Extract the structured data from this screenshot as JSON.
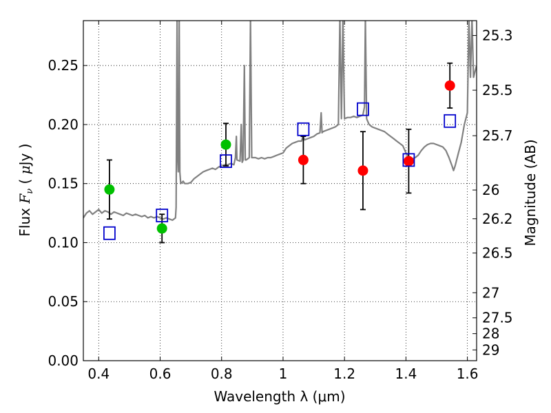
{
  "chart_data": {
    "type": "scatter",
    "xlabel": "Wavelength  λ (μm)",
    "ylabel_parts": [
      "Flux  ",
      "F",
      "ν",
      "  ( ",
      "μ",
      "Jy )"
    ],
    "right_ylabel": "Magnitude (AB)",
    "xlim": [
      0.35,
      1.63
    ],
    "ylim": [
      0.0,
      0.288
    ],
    "grid": true,
    "x_ticks": [
      0.4,
      0.6,
      0.8,
      1.0,
      1.2,
      1.4,
      1.6
    ],
    "x_tick_labels": [
      "0.4",
      "0.6",
      "0.8",
      "1",
      "1.2",
      "1.4",
      "1.6"
    ],
    "y_ticks": [
      0.0,
      0.05,
      0.1,
      0.15,
      0.2,
      0.25
    ],
    "y_tick_labels": [
      "0.00",
      "0.05",
      "0.10",
      "0.15",
      "0.20",
      "0.25"
    ],
    "mag_ticks": [
      25.3,
      25.5,
      25.7,
      26,
      26.2,
      26.5,
      27,
      27.5,
      28,
      29
    ],
    "mag_tick_labels": [
      "25.3",
      "25.5",
      "25.7",
      "26",
      "26.2",
      "26.5",
      "27",
      "27.5",
      "28",
      "29"
    ],
    "colors": {
      "model_line": "#808080",
      "green_points": "#00c000",
      "red_points": "#ff0000",
      "model_boxes": "#0000cc",
      "error_bars": "#000000"
    },
    "series": [
      {
        "marker": "circle",
        "color": "#00c000",
        "points": [
          {
            "x": 0.435,
            "y": 0.145,
            "yerr": 0.025
          },
          {
            "x": 0.606,
            "y": 0.112,
            "yerr": 0.012
          },
          {
            "x": 0.814,
            "y": 0.183,
            "yerr": 0.018
          }
        ]
      },
      {
        "marker": "circle",
        "color": "#ff0000",
        "points": [
          {
            "x": 1.066,
            "y": 0.17,
            "yerr": 0.02
          },
          {
            "x": 1.26,
            "y": 0.161,
            "yerr": 0.033
          },
          {
            "x": 1.409,
            "y": 0.169,
            "yerr": 0.027
          },
          {
            "x": 1.543,
            "y": 0.233,
            "yerr": 0.019
          }
        ]
      },
      {
        "marker": "square",
        "color": "#0000cc",
        "points": [
          {
            "x": 0.435,
            "y": 0.108
          },
          {
            "x": 0.606,
            "y": 0.123
          },
          {
            "x": 0.814,
            "y": 0.169
          },
          {
            "x": 1.066,
            "y": 0.196
          },
          {
            "x": 1.26,
            "y": 0.213
          },
          {
            "x": 1.409,
            "y": 0.17
          },
          {
            "x": 1.543,
            "y": 0.203
          }
        ]
      }
    ],
    "model_spectrum": [
      [
        0.35,
        0.121
      ],
      [
        0.36,
        0.125
      ],
      [
        0.37,
        0.127
      ],
      [
        0.38,
        0.124
      ],
      [
        0.39,
        0.126
      ],
      [
        0.4,
        0.128
      ],
      [
        0.41,
        0.125
      ],
      [
        0.42,
        0.127
      ],
      [
        0.43,
        0.126
      ],
      [
        0.44,
        0.124
      ],
      [
        0.45,
        0.126
      ],
      [
        0.46,
        0.125
      ],
      [
        0.47,
        0.124
      ],
      [
        0.48,
        0.123
      ],
      [
        0.49,
        0.125
      ],
      [
        0.5,
        0.124
      ],
      [
        0.51,
        0.123
      ],
      [
        0.52,
        0.124
      ],
      [
        0.53,
        0.123
      ],
      [
        0.54,
        0.122
      ],
      [
        0.55,
        0.123
      ],
      [
        0.56,
        0.121
      ],
      [
        0.57,
        0.122
      ],
      [
        0.58,
        0.121
      ],
      [
        0.59,
        0.122
      ],
      [
        0.6,
        0.121
      ],
      [
        0.61,
        0.12
      ],
      [
        0.62,
        0.121
      ],
      [
        0.63,
        0.12
      ],
      [
        0.64,
        0.119
      ],
      [
        0.65,
        0.121
      ],
      [
        0.652,
        0.13
      ],
      [
        0.655,
        0.29
      ],
      [
        0.656,
        0.18
      ],
      [
        0.659,
        0.16
      ],
      [
        0.662,
        0.29
      ],
      [
        0.664,
        0.16
      ],
      [
        0.667,
        0.15
      ],
      [
        0.675,
        0.152
      ],
      [
        0.68,
        0.15
      ],
      [
        0.69,
        0.15
      ],
      [
        0.7,
        0.151
      ],
      [
        0.71,
        0.154
      ],
      [
        0.72,
        0.156
      ],
      [
        0.73,
        0.158
      ],
      [
        0.74,
        0.16
      ],
      [
        0.75,
        0.161
      ],
      [
        0.76,
        0.162
      ],
      [
        0.77,
        0.163
      ],
      [
        0.78,
        0.162
      ],
      [
        0.79,
        0.164
      ],
      [
        0.8,
        0.165
      ],
      [
        0.81,
        0.166
      ],
      [
        0.82,
        0.166
      ],
      [
        0.83,
        0.167
      ],
      [
        0.84,
        0.166
      ],
      [
        0.845,
        0.172
      ],
      [
        0.848,
        0.19
      ],
      [
        0.85,
        0.17
      ],
      [
        0.86,
        0.169
      ],
      [
        0.864,
        0.2
      ],
      [
        0.867,
        0.168
      ],
      [
        0.87,
        0.17
      ],
      [
        0.874,
        0.25
      ],
      [
        0.877,
        0.17
      ],
      [
        0.88,
        0.17
      ],
      [
        0.89,
        0.172
      ],
      [
        0.894,
        0.29
      ],
      [
        0.898,
        0.172
      ],
      [
        0.91,
        0.172
      ],
      [
        0.92,
        0.171
      ],
      [
        0.93,
        0.172
      ],
      [
        0.94,
        0.171
      ],
      [
        0.95,
        0.172
      ],
      [
        0.96,
        0.172
      ],
      [
        0.97,
        0.173
      ],
      [
        0.98,
        0.174
      ],
      [
        0.99,
        0.175
      ],
      [
        1.0,
        0.176
      ],
      [
        1.01,
        0.18
      ],
      [
        1.02,
        0.182
      ],
      [
        1.03,
        0.184
      ],
      [
        1.04,
        0.185
      ],
      [
        1.05,
        0.186
      ],
      [
        1.06,
        0.186
      ],
      [
        1.065,
        0.19
      ],
      [
        1.07,
        0.187
      ],
      [
        1.08,
        0.188
      ],
      [
        1.09,
        0.189
      ],
      [
        1.1,
        0.19
      ],
      [
        1.11,
        0.192
      ],
      [
        1.12,
        0.193
      ],
      [
        1.124,
        0.21
      ],
      [
        1.127,
        0.193
      ],
      [
        1.13,
        0.194
      ],
      [
        1.14,
        0.195
      ],
      [
        1.15,
        0.196
      ],
      [
        1.16,
        0.197
      ],
      [
        1.17,
        0.198
      ],
      [
        1.18,
        0.2
      ],
      [
        1.185,
        0.29
      ],
      [
        1.19,
        0.205
      ],
      [
        1.195,
        0.29
      ],
      [
        1.2,
        0.205
      ],
      [
        1.21,
        0.206
      ],
      [
        1.22,
        0.206
      ],
      [
        1.23,
        0.207
      ],
      [
        1.24,
        0.206
      ],
      [
        1.25,
        0.207
      ],
      [
        1.26,
        0.208
      ],
      [
        1.265,
        0.215
      ],
      [
        1.268,
        0.29
      ],
      [
        1.272,
        0.205
      ],
      [
        1.28,
        0.2
      ],
      [
        1.29,
        0.198
      ],
      [
        1.3,
        0.197
      ],
      [
        1.31,
        0.196
      ],
      [
        1.32,
        0.195
      ],
      [
        1.33,
        0.194
      ],
      [
        1.34,
        0.192
      ],
      [
        1.35,
        0.19
      ],
      [
        1.36,
        0.188
      ],
      [
        1.37,
        0.186
      ],
      [
        1.38,
        0.184
      ],
      [
        1.39,
        0.182
      ],
      [
        1.4,
        0.176
      ],
      [
        1.41,
        0.172
      ],
      [
        1.42,
        0.171
      ],
      [
        1.43,
        0.172
      ],
      [
        1.44,
        0.174
      ],
      [
        1.45,
        0.178
      ],
      [
        1.46,
        0.181
      ],
      [
        1.47,
        0.183
      ],
      [
        1.48,
        0.184
      ],
      [
        1.49,
        0.184
      ],
      [
        1.5,
        0.183
      ],
      [
        1.51,
        0.182
      ],
      [
        1.52,
        0.181
      ],
      [
        1.53,
        0.178
      ],
      [
        1.54,
        0.172
      ],
      [
        1.55,
        0.165
      ],
      [
        1.555,
        0.161
      ],
      [
        1.56,
        0.165
      ],
      [
        1.57,
        0.175
      ],
      [
        1.58,
        0.185
      ],
      [
        1.59,
        0.2
      ],
      [
        1.6,
        0.21
      ],
      [
        1.605,
        0.29
      ],
      [
        1.61,
        0.24
      ],
      [
        1.615,
        0.29
      ],
      [
        1.62,
        0.24
      ],
      [
        1.63,
        0.25
      ]
    ]
  }
}
